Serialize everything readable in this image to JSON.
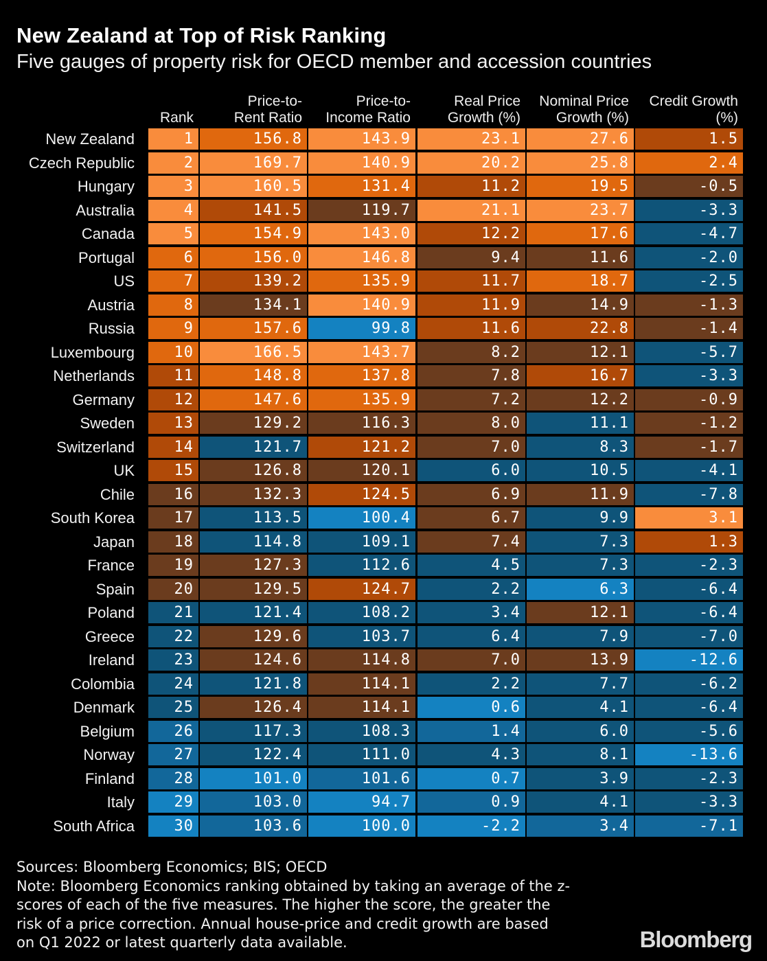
{
  "title": "New Zealand at Top of Risk Ranking",
  "subtitle": "Five gauges of property risk for OECD member and accession countries",
  "headers": {
    "rank": [
      "Rank"
    ],
    "price_to_rent": [
      "Price-to-",
      "Rent Ratio"
    ],
    "price_to_income": [
      "Price-to-",
      "Income Ratio"
    ],
    "real_price_growth": [
      "Real Price",
      "Growth (%)"
    ],
    "nominal_price_growth": [
      "Nominal Price",
      "Growth (%)"
    ],
    "credit_growth": [
      "Credit Growth",
      "(%)"
    ]
  },
  "footer": {
    "lines": [
      "Sources: Bloomberg Economics; BIS; OECD",
      "Note: Bloomberg Economics ranking obtained by taking an average of the z-",
      "scores of each of the five measures. The higher the score, the greater the",
      "risk of a price correction. Annual house-price and credit growth are based",
      "on Q1 2022 or latest quarterly data available."
    ]
  },
  "logo": "Bloomberg",
  "colors": {
    "background": "#000000",
    "orange_light": "#f98c3c",
    "orange": "#e0680e",
    "orange_dark": "#b04a08",
    "brown": "#6b3c1e",
    "blue_dark": "#0f5479",
    "blue": "#12679a",
    "blue_light": "#1482c1"
  },
  "chart_data": {
    "type": "table",
    "title": "New Zealand at Top of Risk Ranking",
    "subtitle": "Five gauges of property risk for OECD member and accession countries",
    "columns": [
      "Rank",
      "Price-to-Rent Ratio",
      "Price-to-Income Ratio",
      "Real Price Growth (%)",
      "Nominal Price Growth (%)",
      "Credit Growth (%)"
    ],
    "rows": [
      {
        "country": "New Zealand",
        "values": [
          "1",
          "156.8",
          "143.9",
          "23.1",
          "27.6",
          "1.5"
        ],
        "colors": [
          "ol",
          "o",
          "ol",
          "ol",
          "ol",
          "od"
        ]
      },
      {
        "country": "Czech Republic",
        "values": [
          "2",
          "169.7",
          "140.9",
          "20.2",
          "25.8",
          "2.4"
        ],
        "colors": [
          "ol",
          "ol",
          "ol",
          "ol",
          "ol",
          "o"
        ]
      },
      {
        "country": "Hungary",
        "values": [
          "3",
          "160.5",
          "131.4",
          "11.2",
          "19.5",
          "-0.5"
        ],
        "colors": [
          "ol",
          "ol",
          "o",
          "od",
          "o",
          "br"
        ]
      },
      {
        "country": "Australia",
        "values": [
          "4",
          "141.5",
          "119.7",
          "21.1",
          "23.7",
          "-3.3"
        ],
        "colors": [
          "ol",
          "od",
          "br",
          "ol",
          "ol",
          "bd"
        ]
      },
      {
        "country": "Canada",
        "values": [
          "5",
          "154.9",
          "143.0",
          "12.2",
          "17.6",
          "-4.7"
        ],
        "colors": [
          "ol",
          "o",
          "ol",
          "od",
          "o",
          "bd"
        ]
      },
      {
        "country": "Portugal",
        "values": [
          "6",
          "156.0",
          "146.8",
          "9.4",
          "11.6",
          "-2.0"
        ],
        "colors": [
          "o",
          "o",
          "ol",
          "br",
          "br",
          "bd"
        ]
      },
      {
        "country": "US",
        "values": [
          "7",
          "139.2",
          "135.9",
          "11.7",
          "18.7",
          "-2.5"
        ],
        "colors": [
          "o",
          "od",
          "o",
          "od",
          "o",
          "bd"
        ]
      },
      {
        "country": "Austria",
        "values": [
          "8",
          "134.1",
          "140.9",
          "11.9",
          "14.9",
          "-1.3"
        ],
        "colors": [
          "o",
          "br",
          "ol",
          "od",
          "br",
          "br"
        ]
      },
      {
        "country": "Russia",
        "values": [
          "9",
          "157.6",
          "99.8",
          "11.6",
          "22.8",
          "-1.4"
        ],
        "colors": [
          "o",
          "o",
          "bl",
          "od",
          "od",
          "br"
        ]
      },
      {
        "country": "Luxembourg",
        "values": [
          "10",
          "166.5",
          "143.7",
          "8.2",
          "12.1",
          "-5.7"
        ],
        "colors": [
          "o",
          "ol",
          "ol",
          "br",
          "br",
          "bd"
        ]
      },
      {
        "country": "Netherlands",
        "values": [
          "11",
          "148.8",
          "137.8",
          "7.8",
          "16.7",
          "-3.3"
        ],
        "colors": [
          "od",
          "o",
          "o",
          "br",
          "od",
          "bd"
        ]
      },
      {
        "country": "Germany",
        "values": [
          "12",
          "147.6",
          "135.9",
          "7.2",
          "12.2",
          "-0.9"
        ],
        "colors": [
          "od",
          "o",
          "o",
          "br",
          "br",
          "br"
        ]
      },
      {
        "country": "Sweden",
        "values": [
          "13",
          "129.2",
          "116.3",
          "8.0",
          "11.1",
          "-1.2"
        ],
        "colors": [
          "od",
          "br",
          "br",
          "br",
          "bd",
          "br"
        ]
      },
      {
        "country": "Switzerland",
        "values": [
          "14",
          "121.7",
          "121.2",
          "7.0",
          "8.3",
          "-1.7"
        ],
        "colors": [
          "od",
          "bd",
          "od",
          "br",
          "bd",
          "br"
        ]
      },
      {
        "country": "UK",
        "values": [
          "15",
          "126.8",
          "120.1",
          "6.0",
          "10.5",
          "-4.1"
        ],
        "colors": [
          "od",
          "br",
          "br",
          "bd",
          "bd",
          "bd"
        ]
      },
      {
        "country": "Chile",
        "values": [
          "16",
          "132.3",
          "124.5",
          "6.9",
          "11.9",
          "-7.8"
        ],
        "colors": [
          "br",
          "br",
          "od",
          "br",
          "br",
          "bd"
        ]
      },
      {
        "country": "South Korea",
        "values": [
          "17",
          "113.5",
          "100.4",
          "6.7",
          "9.9",
          "3.1"
        ],
        "colors": [
          "br",
          "bd",
          "bl",
          "br",
          "bd",
          "ol"
        ]
      },
      {
        "country": "Japan",
        "values": [
          "18",
          "114.8",
          "109.1",
          "7.4",
          "7.3",
          "1.3"
        ],
        "colors": [
          "br",
          "bd",
          "bd",
          "br",
          "bd",
          "od"
        ]
      },
      {
        "country": "France",
        "values": [
          "19",
          "127.3",
          "112.6",
          "4.5",
          "7.3",
          "-2.3"
        ],
        "colors": [
          "br",
          "br",
          "bd",
          "bd",
          "bd",
          "bd"
        ]
      },
      {
        "country": "Spain",
        "values": [
          "20",
          "129.5",
          "124.7",
          "2.2",
          "6.3",
          "-6.4"
        ],
        "colors": [
          "br",
          "br",
          "od",
          "bd",
          "bl",
          "bd"
        ]
      },
      {
        "country": "Poland",
        "values": [
          "21",
          "121.4",
          "108.2",
          "3.4",
          "12.1",
          "-6.4"
        ],
        "colors": [
          "bd",
          "bd",
          "bd",
          "bd",
          "br",
          "bd"
        ]
      },
      {
        "country": "Greece",
        "values": [
          "22",
          "129.6",
          "103.7",
          "6.4",
          "7.9",
          "-7.0"
        ],
        "colors": [
          "bd",
          "br",
          "bd",
          "bd",
          "bd",
          "bd"
        ]
      },
      {
        "country": "Ireland",
        "values": [
          "23",
          "124.6",
          "114.8",
          "7.0",
          "13.9",
          "-12.6"
        ],
        "colors": [
          "bd",
          "br",
          "br",
          "br",
          "br",
          "bl"
        ]
      },
      {
        "country": "Colombia",
        "values": [
          "24",
          "121.8",
          "114.1",
          "2.2",
          "7.7",
          "-6.2"
        ],
        "colors": [
          "bd",
          "bd",
          "br",
          "bd",
          "bd",
          "bd"
        ]
      },
      {
        "country": "Denmark",
        "values": [
          "25",
          "126.4",
          "114.1",
          "0.6",
          "4.1",
          "-6.4"
        ],
        "colors": [
          "bd",
          "br",
          "br",
          "bl",
          "bd",
          "bd"
        ]
      },
      {
        "country": "Belgium",
        "values": [
          "26",
          "117.3",
          "108.3",
          "1.4",
          "6.0",
          "-5.6"
        ],
        "colors": [
          "b",
          "bd",
          "bd",
          "b",
          "bd",
          "bd"
        ]
      },
      {
        "country": "Norway",
        "values": [
          "27",
          "122.4",
          "111.0",
          "4.3",
          "8.1",
          "-13.6"
        ],
        "colors": [
          "b",
          "bd",
          "bd",
          "bd",
          "bd",
          "bl"
        ]
      },
      {
        "country": "Finland",
        "values": [
          "28",
          "101.0",
          "101.6",
          "0.7",
          "3.9",
          "-2.3"
        ],
        "colors": [
          "b",
          "bl",
          "b",
          "bl",
          "bd",
          "bd"
        ]
      },
      {
        "country": "Italy",
        "values": [
          "29",
          "103.0",
          "94.7",
          "0.9",
          "4.1",
          "-3.3"
        ],
        "colors": [
          "bl",
          "b",
          "bl",
          "b",
          "bd",
          "bd"
        ]
      },
      {
        "country": "South Africa",
        "values": [
          "30",
          "103.6",
          "100.0",
          "-2.2",
          "3.4",
          "-7.1"
        ],
        "colors": [
          "bl",
          "b",
          "bl",
          "bl",
          "b",
          "b"
        ]
      }
    ]
  }
}
